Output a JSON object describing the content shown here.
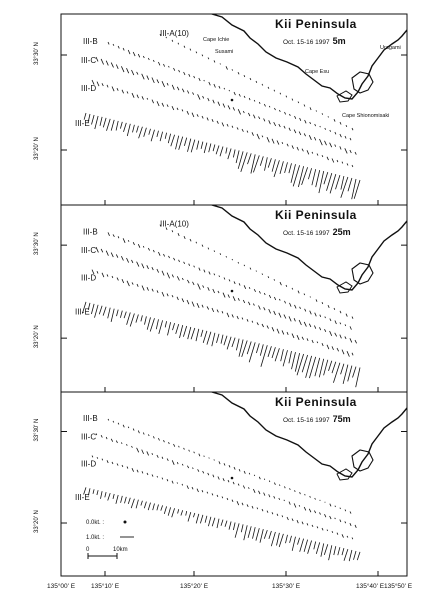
{
  "panels": [
    {
      "title": "Kii Peninsula",
      "subtitle": "Oct. 15-16 1997",
      "depth": "5m",
      "lines": [
        "III-A(10)",
        "III-B",
        "III-C",
        "III-D",
        "III-E"
      ],
      "places": [
        "Cape Ichie",
        "Susami",
        "Cape Esu",
        "Cape Shionomisaki",
        "Uragami"
      ]
    },
    {
      "title": "Kii Peninsula",
      "subtitle": "Oct. 15-16 1997",
      "depth": "25m",
      "lines": [
        "III-A(10)",
        "III-B",
        "III-C",
        "III-D",
        "III-E"
      ]
    },
    {
      "title": "Kii Peninsula",
      "subtitle": "Oct. 15-16 1997",
      "depth": "75m",
      "lines": [
        "III-B",
        "III-C",
        "III-D",
        "III-E"
      ]
    }
  ],
  "lat_labels": [
    "33°30' N",
    "33°20' N"
  ],
  "lon_labels": [
    "135°00' E",
    "135°10' E",
    "135°20' E",
    "135°30' E",
    "135°40' E",
    "135°50' E"
  ],
  "legend": {
    "zero": "0.0kt. :",
    "one": "1.0kt. :",
    "scale_start": "0",
    "scale_end": "10km"
  }
}
